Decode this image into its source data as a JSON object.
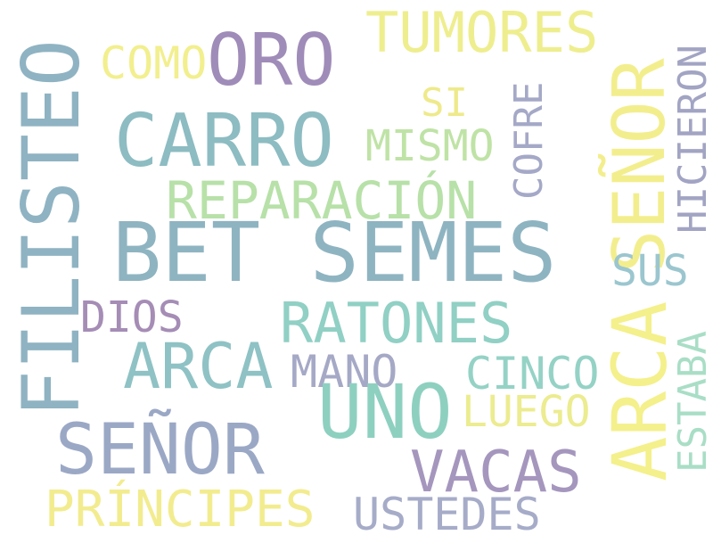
{
  "words": [
    {
      "text": "FILISTEO",
      "color": "#8FB3C2"
    },
    {
      "text": "ORO",
      "color": "#A08CB8"
    },
    {
      "text": "COMO",
      "color": "#F2EF8E"
    },
    {
      "text": "TUMORES",
      "color": "#EEEE8F"
    },
    {
      "text": "SEÑOR",
      "color": "#F3EE8D"
    },
    {
      "text": "HICIERON",
      "color": "#A2A4C3"
    },
    {
      "text": "CARRO",
      "color": "#8DBCC2"
    },
    {
      "text": "SI",
      "color": "#EEEA8B"
    },
    {
      "text": "MISMO",
      "color": "#BFE3A6"
    },
    {
      "text": "COFRE",
      "color": "#A5A9C7"
    },
    {
      "text": "REPARACIÓN",
      "color": "#B7E1A8"
    },
    {
      "text": "BET SEMES",
      "color": "#8FB4C1"
    },
    {
      "text": "ARCA",
      "color": "#F4F08B"
    },
    {
      "text": "SUS",
      "color": "#9BC6CF"
    },
    {
      "text": "DIOS",
      "color": "#A58DB6"
    },
    {
      "text": "RATONES",
      "color": "#91D0C4"
    },
    {
      "text": "ESTABA",
      "color": "#A9DEC6"
    },
    {
      "text": "ARCA",
      "color": "#8FC2C4"
    },
    {
      "text": "MANO",
      "color": "#A5A9C6"
    },
    {
      "text": "CINCO",
      "color": "#95D2C6"
    },
    {
      "text": "UNO",
      "color": "#8ED0C0"
    },
    {
      "text": "LUEGO",
      "color": "#ECEC90"
    },
    {
      "text": "SEÑOR",
      "color": "#9BA8C5"
    },
    {
      "text": "VACAS",
      "color": "#A596BE"
    },
    {
      "text": "PRÍNCIPES",
      "color": "#F2EC8F"
    },
    {
      "text": "USTEDES",
      "color": "#A6ACC8"
    }
  ]
}
